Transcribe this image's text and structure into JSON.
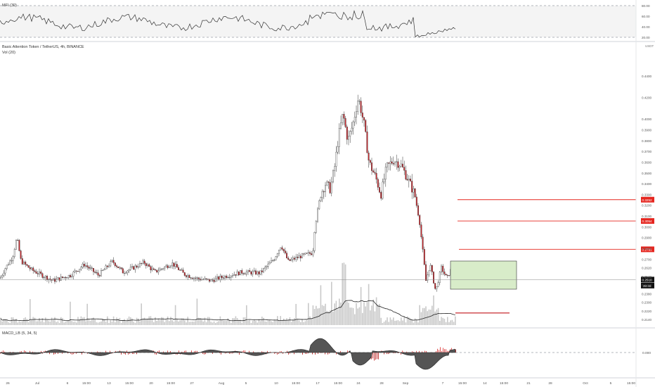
{
  "mfi_pane": {
    "label": "MFI (30)",
    "ticks": [
      "80.00",
      "60.00",
      "40.00",
      "20.00"
    ],
    "tick_values": [
      80,
      60,
      40,
      20
    ],
    "band_upper": 80,
    "band_lower": 20
  },
  "main_pane": {
    "title": "Basic Attention Token / TetherUS, 4h, BINANCE",
    "vol_label": "Vol (20)",
    "currency": "USDT",
    "price_ticks": [
      "0.4400",
      "0.4200",
      "0.4000",
      "0.3900",
      "0.3800",
      "0.3700",
      "0.3600",
      "0.3500",
      "0.3400",
      "0.3300",
      "0.3200",
      "0.3100",
      "0.3000",
      "0.2900",
      "0.2800",
      "0.2700",
      "0.2620",
      "0.2540",
      "0.2460",
      "0.2380",
      "0.2300",
      "0.2220",
      "0.2140"
    ],
    "price_tick_values": [
      0.44,
      0.42,
      0.4,
      0.39,
      0.38,
      0.37,
      0.36,
      0.35,
      0.34,
      0.33,
      0.32,
      0.31,
      0.3,
      0.29,
      0.28,
      0.27,
      0.262,
      0.254,
      0.246,
      0.238,
      0.23,
      0.222,
      0.214
    ],
    "levels": [
      {
        "price": 0.3252,
        "label": "0.3252"
      },
      {
        "price": 0.3054,
        "label": "0.3054"
      },
      {
        "price": 0.2791,
        "label": "0.2791"
      }
    ],
    "current_price": {
      "price": 0.251,
      "label": "0.2510",
      "countdown": "39:45"
    },
    "support_line_price": 0.22,
    "level_color": "#e5261f",
    "zone_color": "#d8ecc9"
  },
  "macd_pane": {
    "label": "MACD_LB (5, 34, 5)",
    "tick_label": "0.000"
  },
  "x_axis": {
    "labels": [
      "26",
      "Jul",
      "6",
      "15:00",
      "13",
      "15:00",
      "20",
      "15:00",
      "27",
      "Aug",
      "5",
      "10",
      "15:00",
      "17",
      "15:00",
      "24",
      "28",
      "Sep",
      "7",
      "15:00",
      "14",
      "15:00",
      "21",
      "28",
      "Oct",
      "5",
      "15:00"
    ]
  },
  "chart_data": {
    "type": "candlestick",
    "title": "Basic Attention Token / TetherUS, 4h, BINANCE",
    "x_range": [
      "26",
      "15:00"
    ],
    "y_unit": "USDT",
    "ylim": [
      0.214,
      0.44
    ],
    "price_path": {
      "description_points": [
        {
          "x": "26",
          "close": 0.252
        },
        {
          "x": "26",
          "close": 0.29
        },
        {
          "x": "Jul",
          "close": 0.25
        },
        {
          "x": "13",
          "close": 0.267
        },
        {
          "x": "20",
          "close": 0.26
        },
        {
          "x": "27",
          "close": 0.254
        },
        {
          "x": "Aug",
          "close": 0.252
        },
        {
          "x": "10",
          "close": 0.283
        },
        {
          "x": "15:00",
          "close": 0.275
        },
        {
          "x": "17",
          "close": 0.33
        },
        {
          "x": "15:00",
          "close": 0.41
        },
        {
          "x": "24",
          "close": 0.428
        },
        {
          "x": "28",
          "close": 0.36
        },
        {
          "x": "Sep",
          "close": 0.32
        },
        {
          "x": "7",
          "close": 0.25
        }
      ]
    },
    "horizontal_levels": [
      0.3252,
      0.3054,
      0.2791,
      0.251,
      0.22
    ],
    "indicators": [
      "MFI (30)",
      "Vol (20)",
      "MACD_LB (5, 34, 5)"
    ],
    "grid": false,
    "legend": "top-left"
  }
}
